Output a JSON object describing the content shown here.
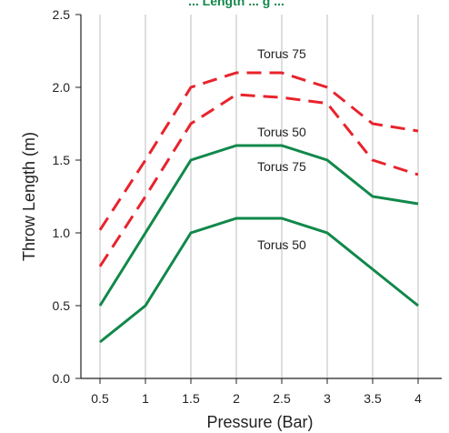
{
  "chart_data": {
    "type": "line",
    "title": "... Length ... g ...",
    "xlabel": "Pressure (Bar)",
    "ylabel": "Throw Length (m)",
    "x": [
      0.5,
      1,
      1.5,
      2,
      2.5,
      3,
      3.5,
      4
    ],
    "x_tick_labels": [
      "0.5",
      "1",
      "1.5",
      "2",
      "2.5",
      "3",
      "3.5",
      "4"
    ],
    "ylim": [
      0,
      2.5
    ],
    "y_ticks": [
      0.0,
      0.5,
      1.0,
      1.5,
      2.0,
      2.5
    ],
    "y_tick_labels": [
      "0.0",
      "0.5",
      "1.0",
      "1.5",
      "2.0",
      "2.5"
    ],
    "grid": "vertical",
    "series": [
      {
        "name": "Torus 75",
        "style": "dashed",
        "color": "#e8232c",
        "values": [
          1.02,
          1.5,
          2.0,
          2.1,
          2.1,
          2.0,
          1.75,
          1.7
        ]
      },
      {
        "name": "Torus 50",
        "style": "dashed",
        "color": "#e8232c",
        "values": [
          0.77,
          1.25,
          1.75,
          1.95,
          1.93,
          1.89,
          1.5,
          1.4
        ]
      },
      {
        "name": "Torus 75",
        "style": "solid",
        "color": "#11884a",
        "values": [
          0.5,
          1.0,
          1.5,
          1.6,
          1.6,
          1.5,
          1.25,
          1.2
        ]
      },
      {
        "name": "Torus 50",
        "style": "solid",
        "color": "#11884a",
        "values": [
          0.25,
          0.5,
          1.0,
          1.1,
          1.1,
          1.0,
          0.75,
          0.5
        ]
      }
    ],
    "colors": {
      "title": "#11884a",
      "grid": "#c8c8c8",
      "axis": "#222222"
    }
  }
}
